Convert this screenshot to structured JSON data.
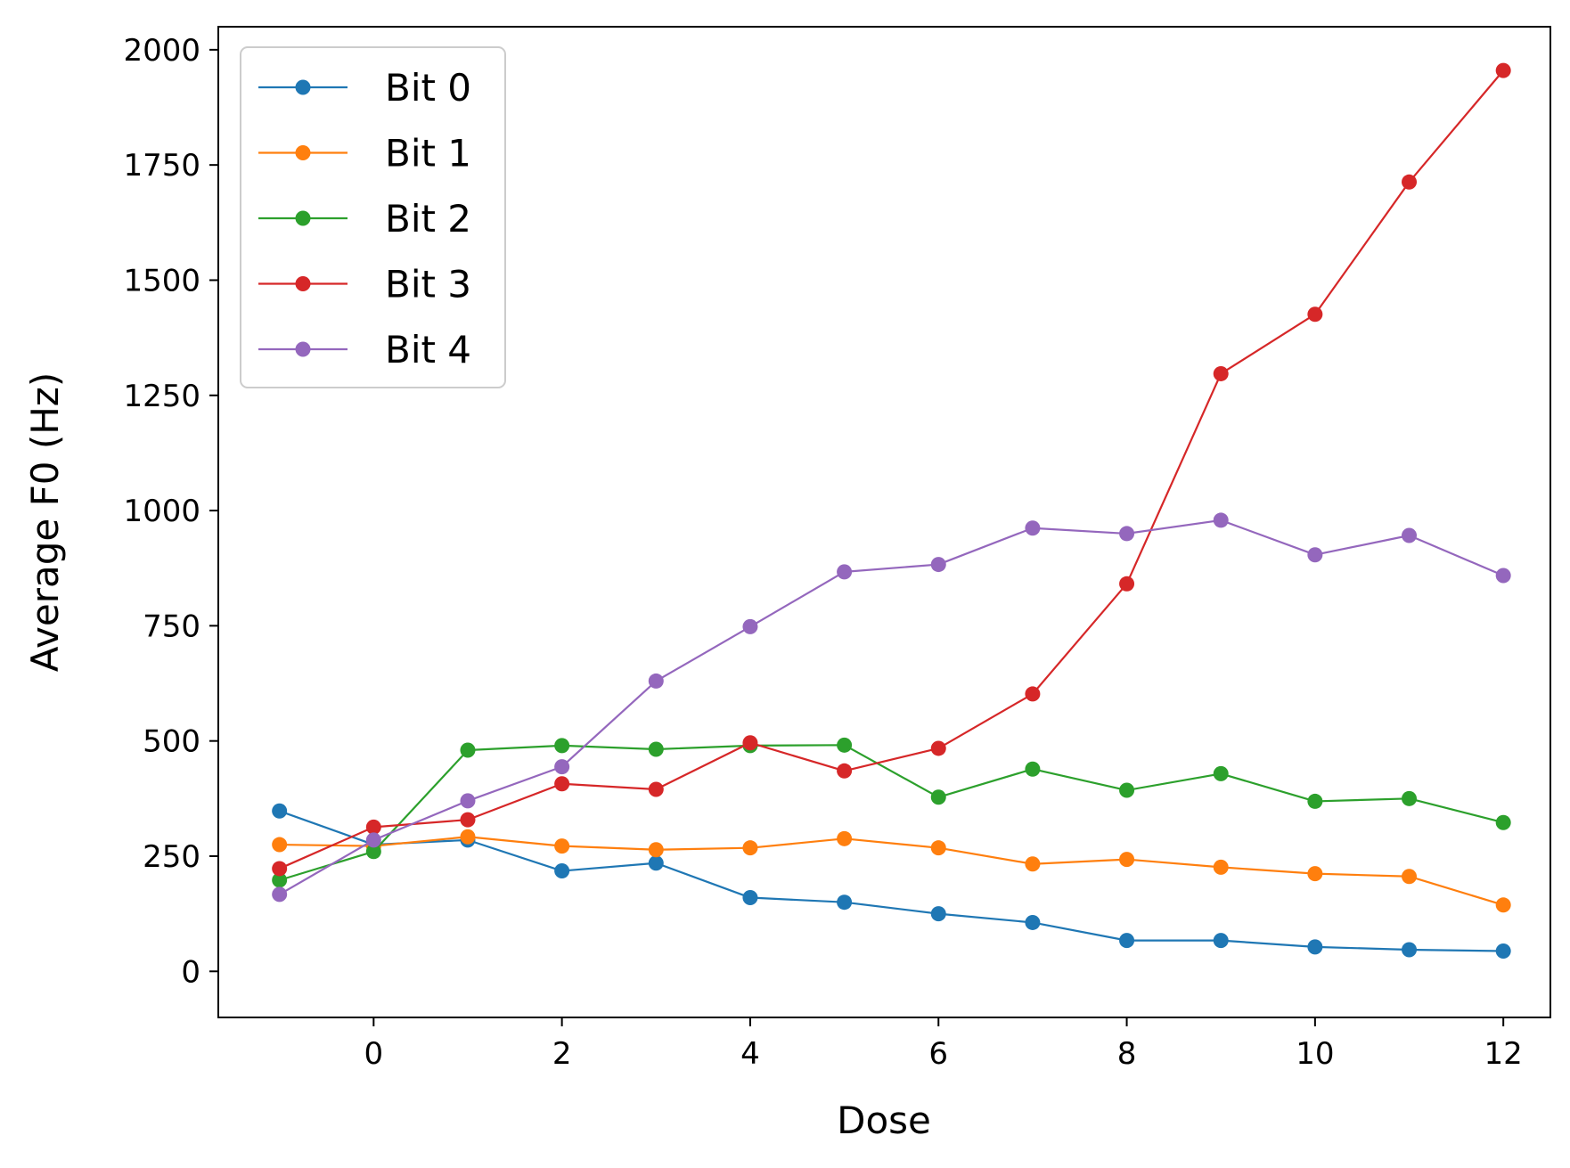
{
  "chart_data": {
    "type": "line",
    "xlabel": "Dose",
    "ylabel": "Average F0 (Hz)",
    "xlim": [
      -1.65,
      12.5
    ],
    "ylim": [
      -100,
      2050
    ],
    "xticks": [
      0,
      2,
      4,
      6,
      8,
      10,
      12
    ],
    "yticks": [
      0,
      250,
      500,
      750,
      1000,
      1250,
      1500,
      1750,
      2000
    ],
    "grid": false,
    "legend_position": "top-left",
    "x": [
      -1,
      0,
      1,
      2,
      3,
      4,
      5,
      6,
      7,
      8,
      9,
      10,
      11,
      12
    ],
    "series": [
      {
        "name": "Bit 0",
        "color": "#1f77b4",
        "values": [
          348,
          275,
          285,
          218,
          235,
          160,
          150,
          125,
          106,
          67,
          67,
          53,
          47,
          44
        ]
      },
      {
        "name": "Bit 1",
        "color": "#ff7f0e",
        "values": [
          275,
          272,
          292,
          272,
          264,
          268,
          288,
          268,
          233,
          243,
          226,
          212,
          206,
          144
        ]
      },
      {
        "name": "Bit 2",
        "color": "#2ca02c",
        "values": [
          198,
          260,
          480,
          490,
          482,
          490,
          491,
          378,
          439,
          393,
          429,
          369,
          375,
          323
        ]
      },
      {
        "name": "Bit 3",
        "color": "#d62728",
        "values": [
          223,
          313,
          329,
          407,
          395,
          496,
          435,
          484,
          602,
          841,
          1297,
          1426,
          1713,
          1955
        ]
      },
      {
        "name": "Bit 4",
        "color": "#9467bd",
        "values": [
          167,
          285,
          370,
          444,
          630,
          748,
          867,
          883,
          962,
          950,
          979,
          904,
          946,
          859
        ]
      }
    ]
  }
}
